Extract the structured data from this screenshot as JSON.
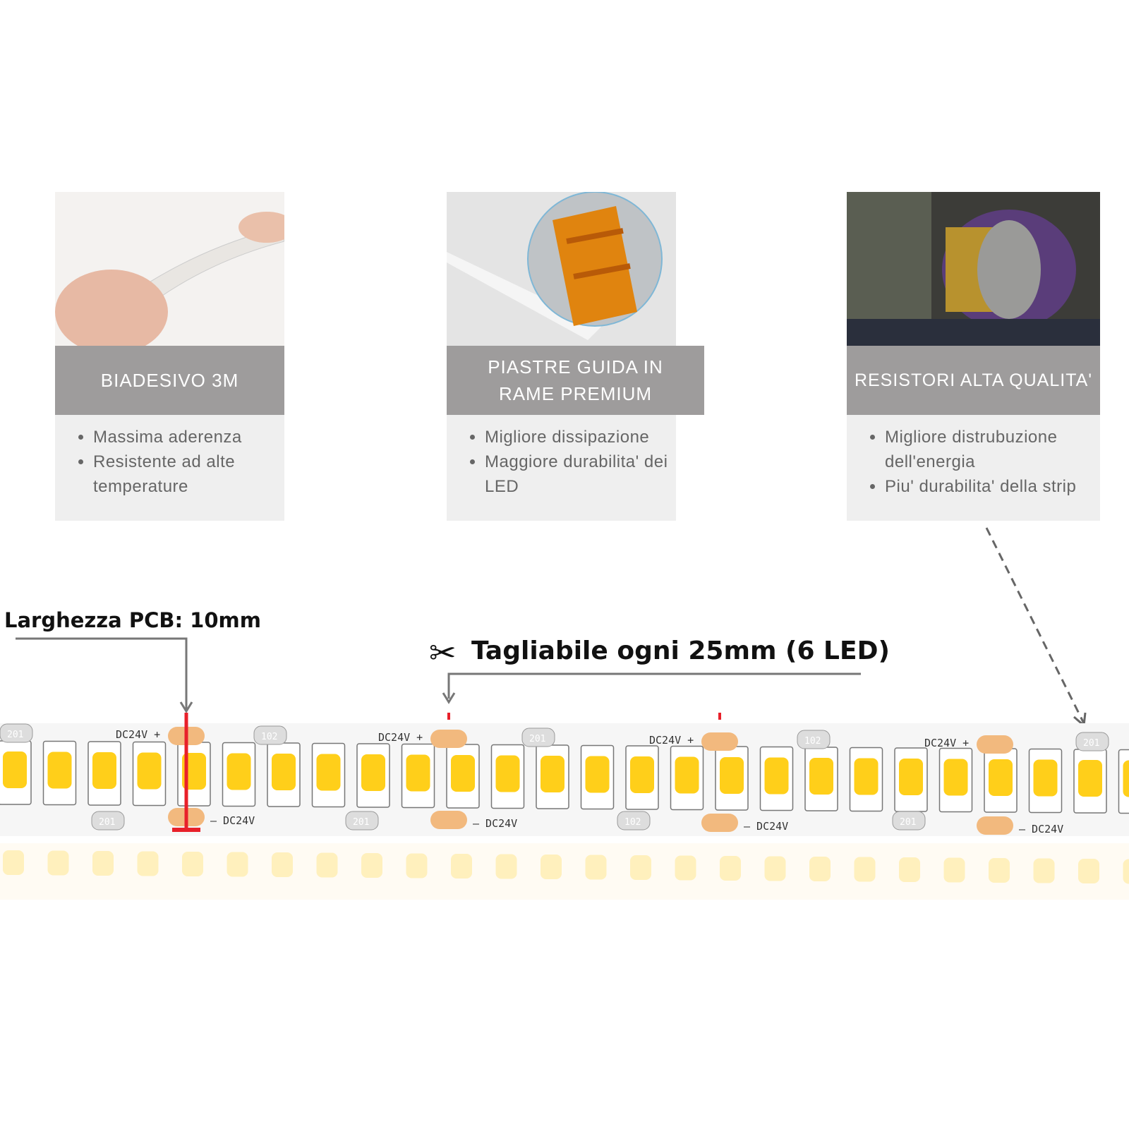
{
  "cards": [
    {
      "title": "BIADESIVO 3M",
      "bullets": [
        "Massima aderenza",
        "Resistente ad alte temperature"
      ]
    },
    {
      "title": "PIASTRE GUIDA IN RAME PREMIUM",
      "bullets": [
        "Migliore dissipazione",
        "Maggiore durabilita' dei LED"
      ]
    },
    {
      "title": "RESISTORI ALTA QUALITA'",
      "bullets": [
        "Migliore distrubuzione dell'energia",
        "Piu' durabilita' della strip"
      ]
    }
  ],
  "annotations": {
    "pcb_width": "Larghezza  PCB: 10mm",
    "cut_every": "Tagliabile ogni 25mm (6 LED)"
  },
  "strip": {
    "voltage_label": "DC24V",
    "resistor_codes": [
      "201",
      "102"
    ]
  },
  "colors": {
    "header_grey": "#9e9c9c",
    "card_bg": "#efefef",
    "marker_red": "#e8202a",
    "led_yellow": "#ffcf1a",
    "pad_orange": "#f2b97e"
  }
}
